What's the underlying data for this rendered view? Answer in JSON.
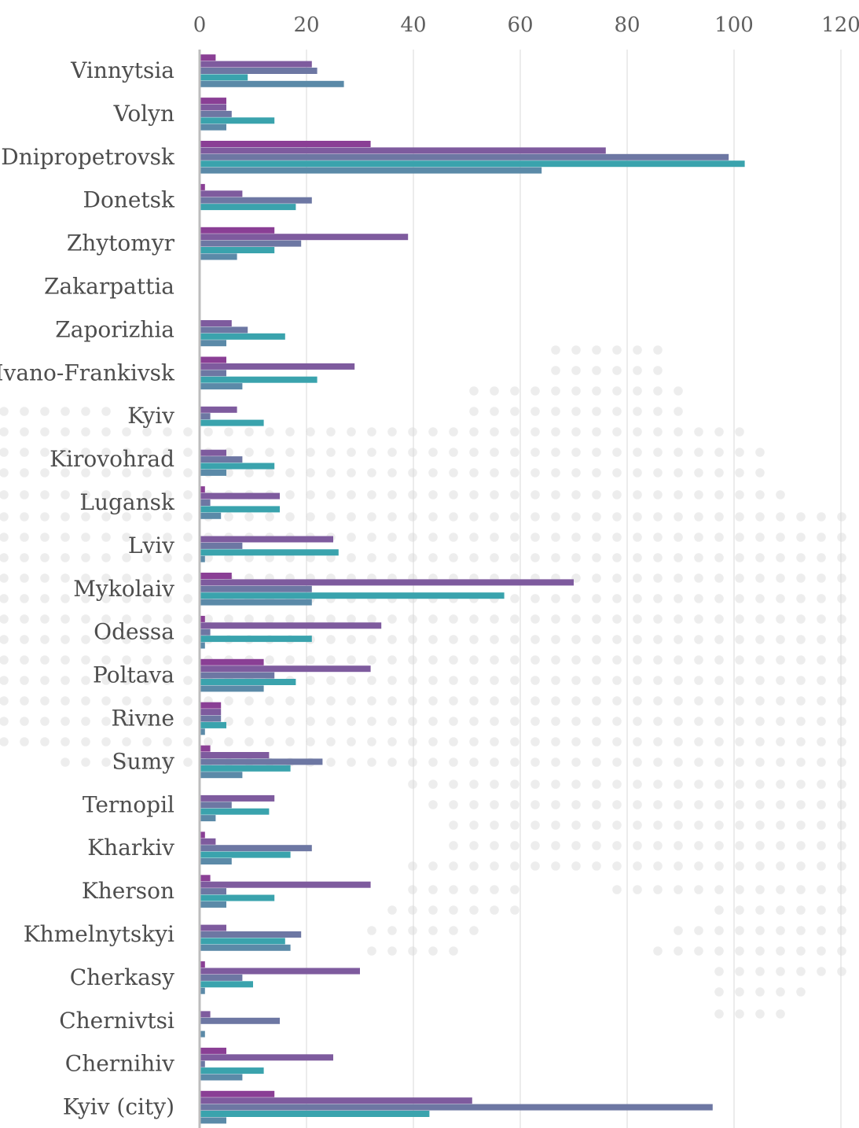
{
  "chart_data": {
    "type": "bar",
    "orientation": "horizontal",
    "grid": true,
    "xlim": [
      0,
      120
    ],
    "x_ticks": [
      "0",
      "20",
      "40",
      "60",
      "80",
      "100",
      "120"
    ],
    "categories": [
      "Vinnytsia",
      "Volyn",
      "Dnipropetrovsk",
      "Donetsk",
      "Zhytomyr",
      "Zakarpattia",
      "Zaporizhia",
      "Ivano-Frankivsk",
      "Kyiv",
      "Kirovohrad",
      "Lugansk",
      "Lviv",
      "Mykolaiv",
      "Odessa",
      "Poltava",
      "Rivne",
      "Sumy",
      "Ternopil",
      "Kharkiv",
      "Kherson",
      "Khmelnytskyi",
      "Cherkasy",
      "Chernivtsi",
      "Chernihiv",
      "Kyiv (city)"
    ],
    "series": [
      {
        "color": "#8a3f95",
        "values": [
          3,
          5,
          32,
          1,
          14,
          0,
          0,
          5,
          0,
          0,
          1,
          0,
          6,
          1,
          12,
          4,
          2,
          0,
          1,
          2,
          0,
          1,
          0,
          5,
          14
        ]
      },
      {
        "color": "#7e5b9e",
        "values": [
          21,
          5,
          76,
          8,
          39,
          0,
          6,
          29,
          7,
          5,
          15,
          25,
          70,
          34,
          32,
          4,
          13,
          14,
          3,
          32,
          5,
          30,
          2,
          25,
          51
        ]
      },
      {
        "color": "#6d77a3",
        "values": [
          22,
          6,
          99,
          21,
          19,
          0,
          9,
          5,
          2,
          8,
          2,
          8,
          21,
          2,
          14,
          4,
          23,
          6,
          21,
          5,
          19,
          8,
          15,
          1,
          96
        ]
      },
      {
        "color": "#3aa3ad",
        "values": [
          9,
          14,
          102,
          18,
          14,
          0,
          16,
          22,
          12,
          14,
          15,
          26,
          57,
          21,
          18,
          5,
          17,
          13,
          17,
          14,
          16,
          10,
          0,
          12,
          43
        ]
      },
      {
        "color": "#5b8aa8",
        "values": [
          27,
          5,
          64,
          0,
          7,
          0,
          5,
          8,
          0,
          5,
          4,
          1,
          21,
          1,
          12,
          1,
          8,
          3,
          6,
          5,
          17,
          1,
          1,
          8,
          5
        ]
      }
    ]
  },
  "colors": {
    "grid": "#d9d9d9",
    "axis": "#bdbdbd",
    "dots": "#ededed"
  }
}
